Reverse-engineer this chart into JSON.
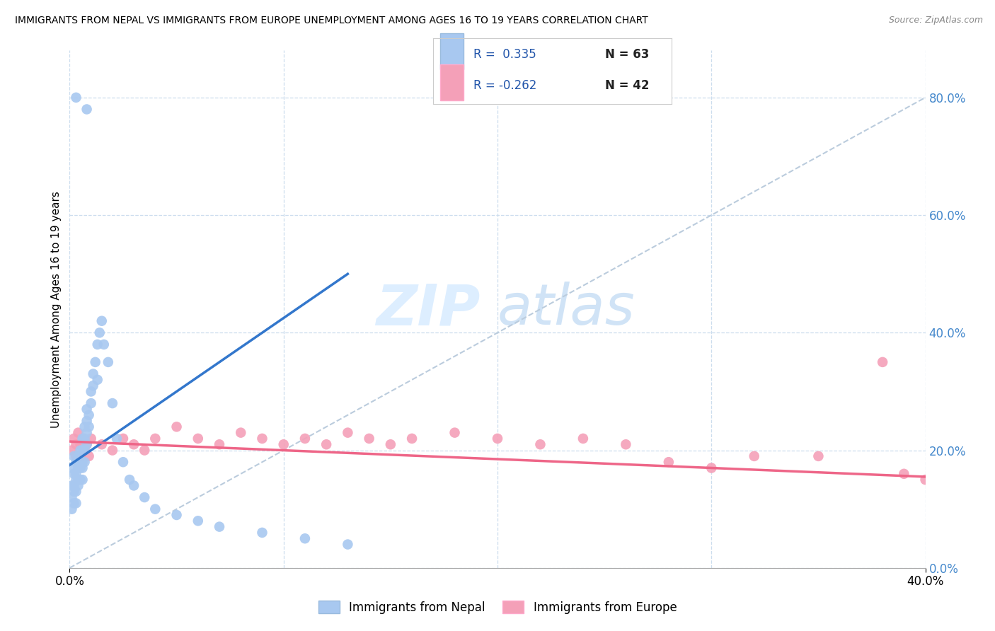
{
  "title": "IMMIGRANTS FROM NEPAL VS IMMIGRANTS FROM EUROPE UNEMPLOYMENT AMONG AGES 16 TO 19 YEARS CORRELATION CHART",
  "source": "Source: ZipAtlas.com",
  "ylabel": "Unemployment Among Ages 16 to 19 years",
  "ylabel_ticks": [
    "0.0%",
    "20.0%",
    "40.0%",
    "60.0%",
    "80.0%"
  ],
  "ylabel_tick_vals": [
    0.0,
    0.2,
    0.4,
    0.6,
    0.8
  ],
  "xtick_labels": [
    "0.0%",
    "40.0%"
  ],
  "xtick_vals": [
    0.0,
    0.4
  ],
  "xlim": [
    0.0,
    0.4
  ],
  "ylim": [
    0.0,
    0.88
  ],
  "nepal_R": 0.335,
  "nepal_N": 63,
  "europe_R": -0.262,
  "europe_N": 42,
  "nepal_color": "#a8c8f0",
  "europe_color": "#f4a0b8",
  "nepal_line_color": "#3377cc",
  "europe_line_color": "#ee6688",
  "ref_line_color": "#bbccdd",
  "background_color": "#ffffff",
  "grid_color": "#ccddee",
  "watermark_zip": "ZIP",
  "watermark_atlas": "atlas",
  "ytick_color": "#4488cc",
  "legend_text_color": "#2255aa",
  "legend_N_color": "#222222",
  "nepal_x": [
    0.001,
    0.001,
    0.001,
    0.001,
    0.002,
    0.002,
    0.002,
    0.002,
    0.002,
    0.003,
    0.003,
    0.003,
    0.003,
    0.003,
    0.004,
    0.004,
    0.004,
    0.004,
    0.005,
    0.005,
    0.005,
    0.005,
    0.006,
    0.006,
    0.006,
    0.006,
    0.006,
    0.007,
    0.007,
    0.007,
    0.007,
    0.008,
    0.008,
    0.008,
    0.008,
    0.009,
    0.009,
    0.01,
    0.01,
    0.011,
    0.011,
    0.012,
    0.013,
    0.013,
    0.014,
    0.015,
    0.016,
    0.018,
    0.02,
    0.022,
    0.025,
    0.028,
    0.03,
    0.035,
    0.04,
    0.05,
    0.06,
    0.07,
    0.09,
    0.11,
    0.13,
    0.003,
    0.008
  ],
  "nepal_y": [
    0.17,
    0.14,
    0.12,
    0.1,
    0.19,
    0.16,
    0.14,
    0.13,
    0.11,
    0.18,
    0.16,
    0.15,
    0.13,
    0.11,
    0.19,
    0.17,
    0.15,
    0.14,
    0.2,
    0.18,
    0.17,
    0.15,
    0.22,
    0.2,
    0.18,
    0.17,
    0.15,
    0.24,
    0.22,
    0.2,
    0.18,
    0.27,
    0.25,
    0.23,
    0.21,
    0.26,
    0.24,
    0.3,
    0.28,
    0.33,
    0.31,
    0.35,
    0.38,
    0.32,
    0.4,
    0.42,
    0.38,
    0.35,
    0.28,
    0.22,
    0.18,
    0.15,
    0.14,
    0.12,
    0.1,
    0.09,
    0.08,
    0.07,
    0.06,
    0.05,
    0.04,
    0.8,
    0.78
  ],
  "europe_x": [
    0.001,
    0.002,
    0.003,
    0.003,
    0.004,
    0.005,
    0.005,
    0.006,
    0.007,
    0.008,
    0.009,
    0.01,
    0.015,
    0.02,
    0.025,
    0.03,
    0.035,
    0.04,
    0.05,
    0.06,
    0.07,
    0.08,
    0.09,
    0.1,
    0.11,
    0.12,
    0.13,
    0.14,
    0.15,
    0.16,
    0.18,
    0.2,
    0.22,
    0.24,
    0.26,
    0.28,
    0.3,
    0.32,
    0.35,
    0.38,
    0.39,
    0.4
  ],
  "europe_y": [
    0.2,
    0.22,
    0.21,
    0.19,
    0.23,
    0.21,
    0.19,
    0.22,
    0.2,
    0.21,
    0.19,
    0.22,
    0.21,
    0.2,
    0.22,
    0.21,
    0.2,
    0.22,
    0.24,
    0.22,
    0.21,
    0.23,
    0.22,
    0.21,
    0.22,
    0.21,
    0.23,
    0.22,
    0.21,
    0.22,
    0.23,
    0.22,
    0.21,
    0.22,
    0.21,
    0.18,
    0.17,
    0.19,
    0.19,
    0.35,
    0.16,
    0.15
  ],
  "nepal_line_x0": 0.0,
  "nepal_line_y0": 0.175,
  "nepal_line_x1": 0.13,
  "nepal_line_y1": 0.5,
  "europe_line_x0": 0.0,
  "europe_line_y0": 0.215,
  "europe_line_x1": 0.4,
  "europe_line_y1": 0.155
}
